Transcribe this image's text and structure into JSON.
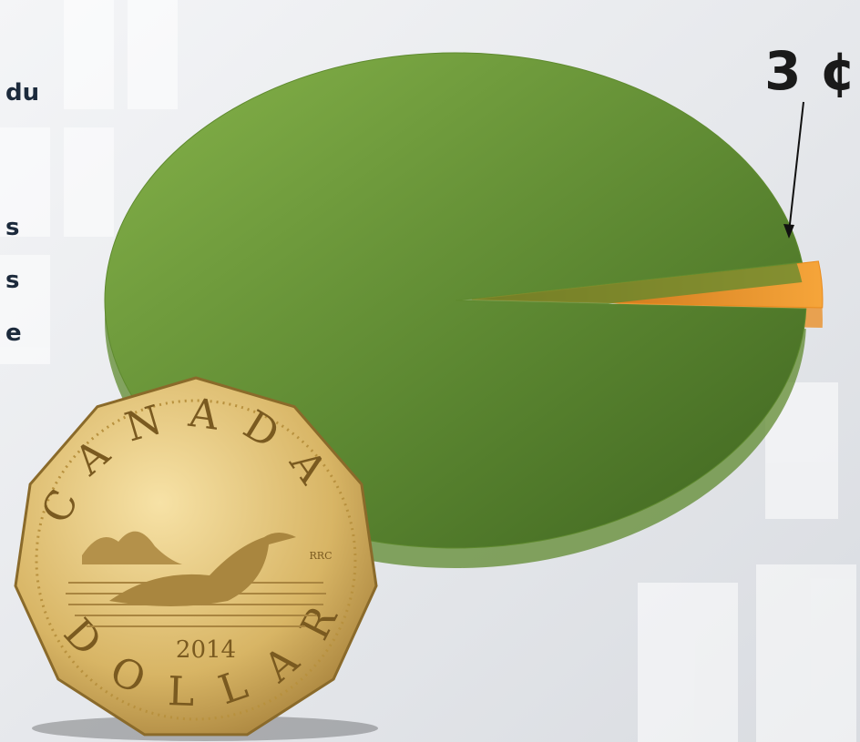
{
  "chart_data": {
    "type": "pie",
    "categories": [
      null,
      null
    ],
    "values": [
      97,
      3
    ],
    "value_labels": [
      null,
      "3 ¢"
    ],
    "colors": [
      "#5f8a2f",
      "#e98b1d"
    ]
  },
  "side_text": [
    "du",
    "s",
    "s",
    "e"
  ],
  "coin": {
    "country": "CANADA",
    "year": "2014",
    "denomination": "DOLLAR",
    "initials": "RRC"
  }
}
